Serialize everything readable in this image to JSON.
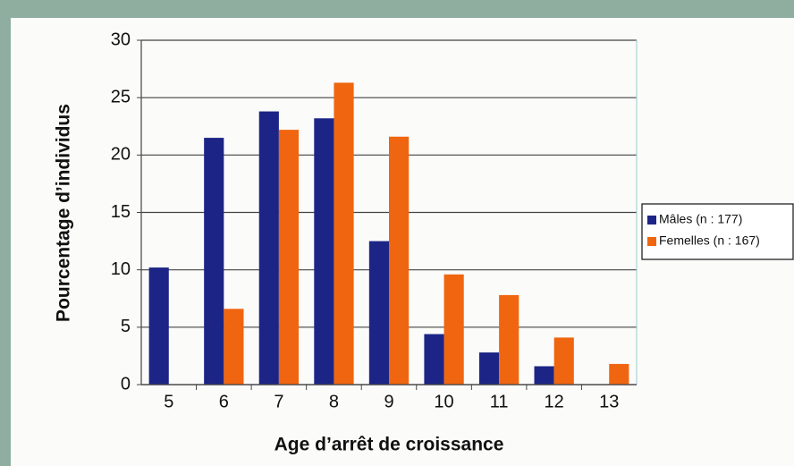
{
  "chart_data": {
    "type": "bar",
    "y_label": "Pourcentage d’individus",
    "x_label": "Age d’arrêt de croissance",
    "categories": [
      "5",
      "6",
      "7",
      "8",
      "9",
      "10",
      "11",
      "12",
      "13"
    ],
    "series": [
      {
        "name": "Mâles (n : 177)",
        "color": "#1c2585",
        "values": [
          10.2,
          21.5,
          23.8,
          23.2,
          12.5,
          4.4,
          2.8,
          1.6,
          0
        ]
      },
      {
        "name": "Femelles (n : 167)",
        "color": "#f0650f",
        "values": [
          0,
          6.6,
          22.2,
          26.3,
          21.6,
          9.6,
          7.8,
          4.1,
          1.8
        ]
      }
    ],
    "ylim": [
      0,
      30
    ],
    "yticks": [
      0,
      5,
      10,
      15,
      20,
      25,
      30
    ],
    "grid": true,
    "legend": "right"
  }
}
